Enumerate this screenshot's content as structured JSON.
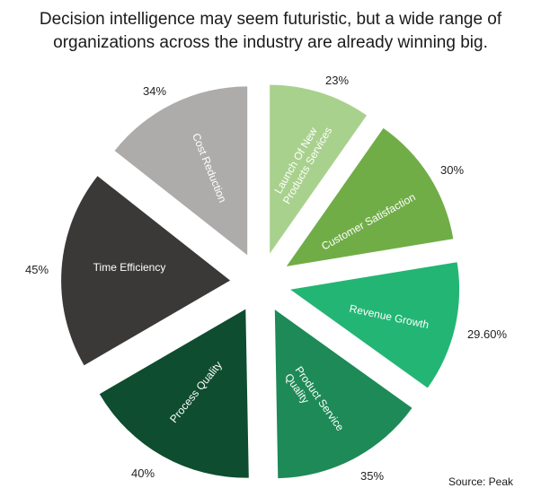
{
  "header": {
    "title_lines": [
      "Decision intelligence may seem futuristic, but a wide range of",
      "organizations across the industry are already winning big."
    ]
  },
  "chart_data": {
    "type": "pie",
    "title": "Decision intelligence may seem futuristic, but a wide range of organizations across the industry are already winning big.",
    "categories": [
      "Launch Of New Products Services",
      "Customer Satisfaction",
      "Revenue Growth",
      "Product Service Quality",
      "Process Quality",
      "Time Efficiency",
      "Cost Reduction"
    ],
    "values": [
      23,
      30,
      29.6,
      35,
      40,
      45,
      34
    ],
    "value_labels": [
      "23%",
      "30%",
      "29.60%",
      "35%",
      "40%",
      "45%",
      "34%"
    ],
    "slice_label_lines": [
      [
        "Launch Of New",
        "Products Services"
      ],
      [
        "Customer Satisfaction"
      ],
      [
        "Revenue Growth"
      ],
      [
        "Product Service",
        "Quality"
      ],
      [
        "Process Quality"
      ],
      [
        "Time Efficiency"
      ],
      [
        "Cost Reduction"
      ]
    ],
    "colors": [
      "#a9d18e",
      "#70ad47",
      "#23b574",
      "#1e8a57",
      "#0e4d2f",
      "#3b3838",
      "#aeabab"
    ],
    "units": "%",
    "start_angle": 0,
    "direction": "clockwise",
    "exploded": true,
    "legend": "none",
    "annotations": [
      "Source: Peak"
    ]
  },
  "footer": {
    "source": "Source: Peak"
  }
}
